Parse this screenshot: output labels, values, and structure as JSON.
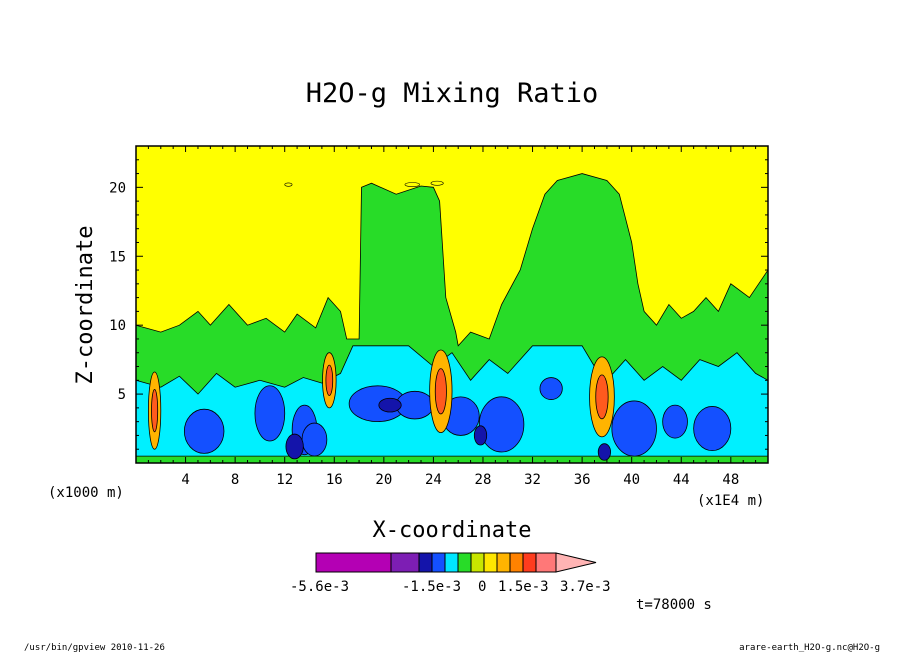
{
  "chart_data": {
    "type": "heatmap",
    "title": "H2O-g Mixing Ratio",
    "xlabel": "X-coordinate",
    "ylabel": "Z-coordinate",
    "x_units_left": "(x1000 m)",
    "x_units_right": "(x1E4 m)",
    "xlim": [
      0,
      51
    ],
    "ylim": [
      0,
      23
    ],
    "xticks": [
      "4",
      "8",
      "12",
      "16",
      "20",
      "24",
      "28",
      "32",
      "36",
      "40",
      "44",
      "48"
    ],
    "yticks": [
      "5",
      "10",
      "15",
      "20"
    ],
    "legend": {
      "colors": [
        "#b400b4",
        "#7d1eb4",
        "#1414aa",
        "#1450ff",
        "#00e6ff",
        "#28dc28",
        "#c8e600",
        "#ffe600",
        "#ffb400",
        "#ff8200",
        "#ff3c1e",
        "#ff7878",
        "#ffb4b4"
      ],
      "labels": [
        "-5.6e-3",
        "-1.5e-3",
        "0",
        "1.5e-3",
        "3.7e-3"
      ]
    },
    "time_label": "t=78000 s",
    "regions": [
      {
        "level": "yellow",
        "note": "upper atmosphere anomaly above ~10-13 z"
      },
      {
        "level": "green",
        "note": "near-zero band across mid levels"
      },
      {
        "level": "cyan",
        "note": "negative layer 2-8 z"
      },
      {
        "level": "blue",
        "note": "strong negative cores near 2-5 z"
      },
      {
        "level": "orange-red",
        "note": "positive plumes near x=1.5, 15.5, 24.5, 37.5"
      }
    ]
  },
  "footer": {
    "left": "/usr/bin/gpview   2010-11-26",
    "right": "arare-earth_H2O-g.nc@H2O-g"
  },
  "colors": {
    "yellow": "#ffff00",
    "green": "#28dc28",
    "cyan": "#00f0ff",
    "blue": "#1450ff",
    "navy": "#1414aa",
    "orange": "#ffb400",
    "red": "#ff5a1e"
  }
}
